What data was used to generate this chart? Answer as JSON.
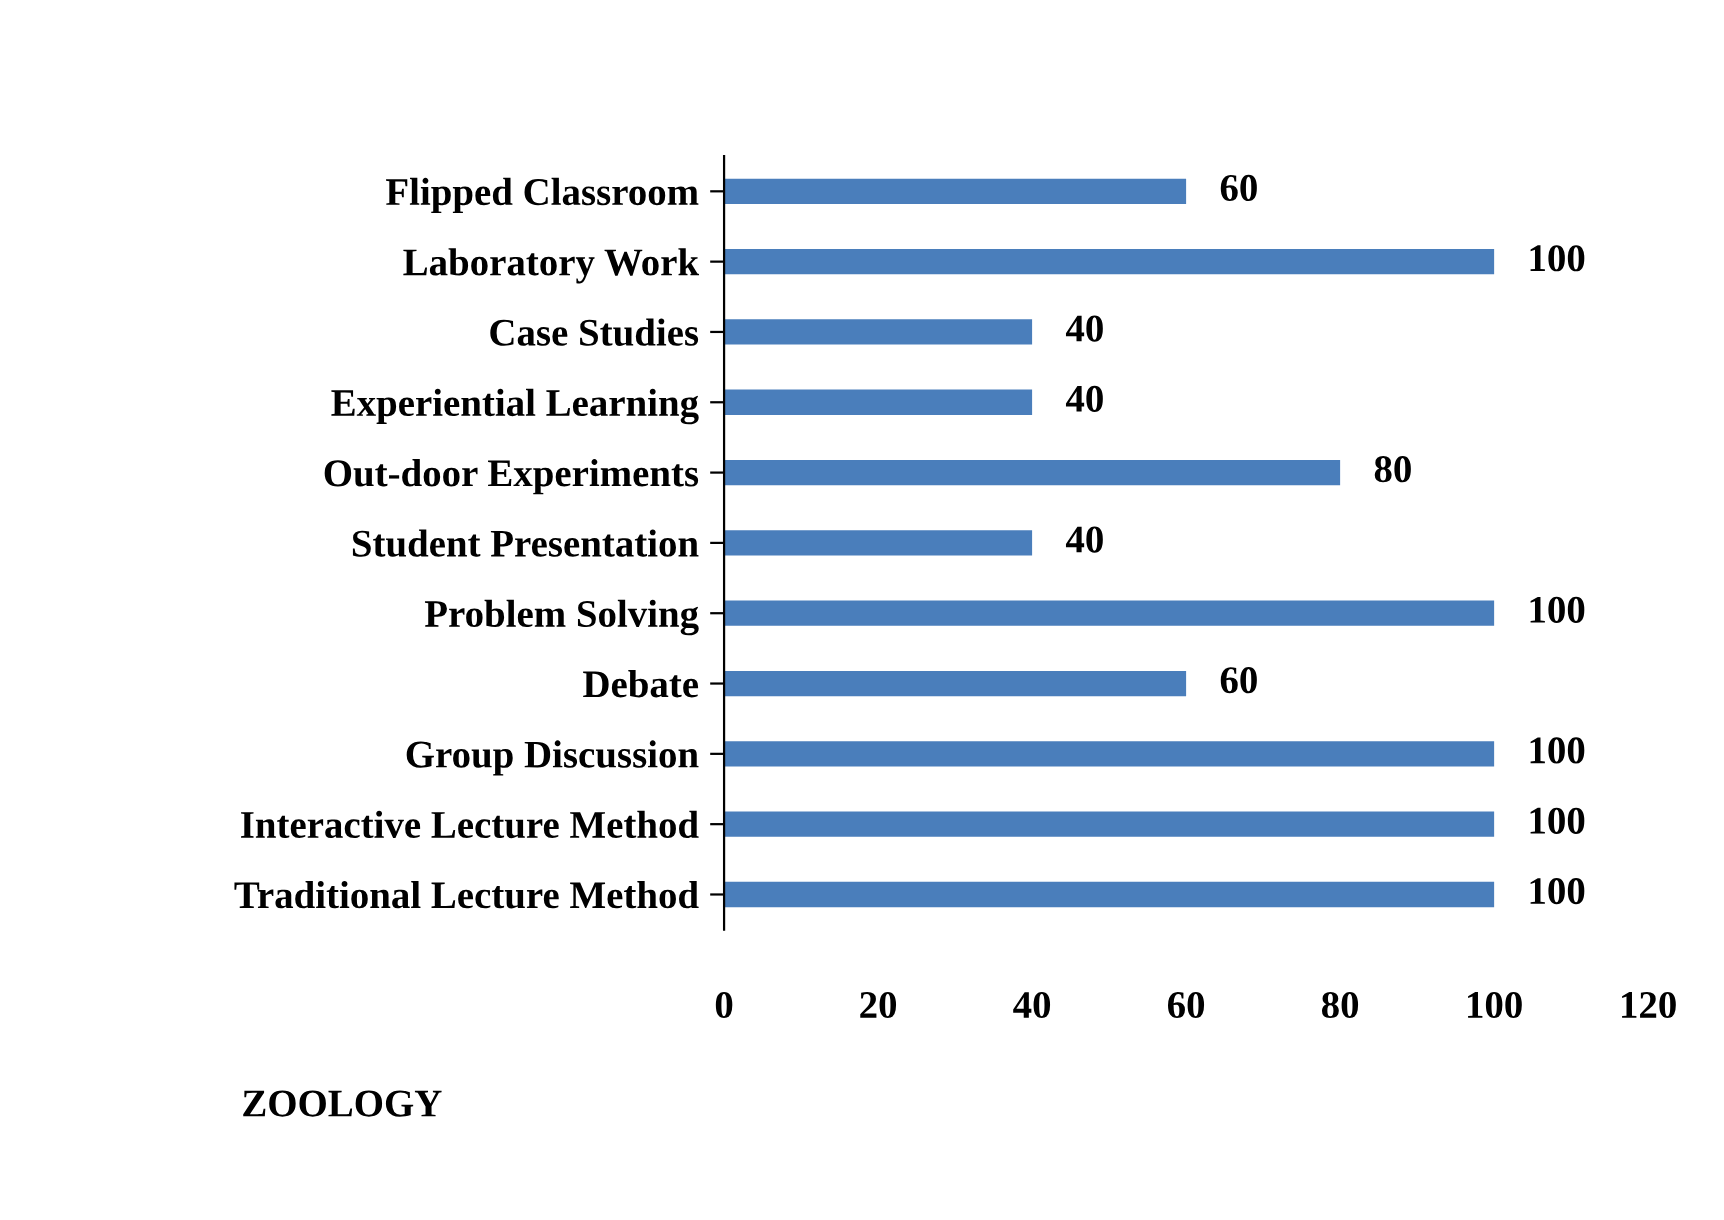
{
  "chart_data": {
    "type": "bar",
    "orientation": "horizontal",
    "xlabel": "ZOOLOGY",
    "categories": [
      "Flipped Classroom",
      "Laboratory Work",
      "Case Studies",
      "Experiential Learning",
      "Out-door Experiments",
      "Student Presentation",
      "Problem Solving",
      "Debate",
      "Group Discussion",
      "Interactive Lecture Method",
      "Traditional Lecture Method"
    ],
    "values": [
      60,
      100,
      40,
      40,
      80,
      40,
      100,
      60,
      100,
      100,
      100
    ],
    "color": "#4a7ebb",
    "xlim": [
      0,
      120
    ],
    "xticks": [
      0,
      20,
      40,
      60,
      80,
      100,
      120
    ],
    "data_labels": true,
    "grid": false,
    "legend": false
  }
}
